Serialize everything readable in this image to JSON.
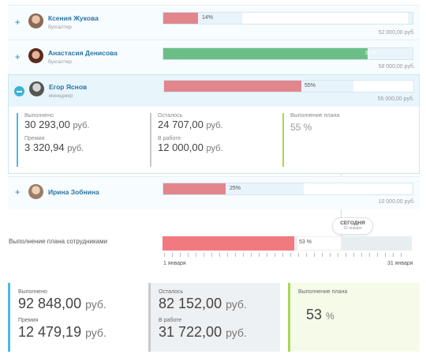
{
  "employees": [
    {
      "name": "Ксения Жукова",
      "role": "бухгалтер",
      "percent": 14,
      "percent_label": "14%",
      "plan": "52 000,00 руб.",
      "color": "#e2868c"
    },
    {
      "name": "Анастасия Денисова",
      "role": "бухгалтер",
      "percent": 91,
      "percent_label": "91%",
      "plan": "58 000,00 руб.",
      "color": "#6bbf86"
    },
    {
      "name": "Егор Яснов",
      "role": "менеджер",
      "percent": 55,
      "percent_label": "55%",
      "plan": "55 000,00 руб.",
      "color": "#e2868c"
    },
    {
      "name": "Ирина Зобнина",
      "role": "",
      "percent": 25,
      "percent_label": "25%",
      "plan": "10 000,00 руб.",
      "color": "#e2868c"
    }
  ],
  "detail": {
    "done_label": "Выполнено",
    "done_value": "30 293,00",
    "done_unit": "руб.",
    "bonus_label": "Премия",
    "bonus_value": "3 320,94",
    "bonus_unit": "руб.",
    "left_label": "Осталось",
    "left_value": "24 707,00",
    "left_unit": "руб.",
    "work_label": "В работе",
    "work_value": "12 000,00",
    "work_unit": "руб.",
    "plan_label": "Выполнение плана",
    "plan_value": "55 %"
  },
  "today": {
    "label": "СЕГОДНЯ",
    "date": "22 января"
  },
  "summary": {
    "label": "Выполнение плана сотрудниками",
    "percent": 53,
    "percent_label": "53 %",
    "axis_start": "1 января",
    "axis_end": "31 января"
  },
  "cards": {
    "done_label": "Выполнено",
    "done_value": "92 848,00",
    "done_unit": "руб.",
    "bonus_label": "Премия",
    "bonus_value": "12 479,19",
    "bonus_unit": "руб.",
    "left_label": "Осталось",
    "left_value": "82 152,00",
    "left_unit": "руб.",
    "work_label": "В работе",
    "work_value": "31 722,00",
    "work_unit": "руб.",
    "plan_label": "Выполнение плана",
    "plan_value": "53",
    "plan_unit": "%"
  },
  "colors": {
    "accent": "#4bb9e3",
    "red_bar": "#e2868c",
    "green_bar": "#6bbf86",
    "summary_bar": "#f07a80",
    "plan_card": "#a8d65a"
  }
}
